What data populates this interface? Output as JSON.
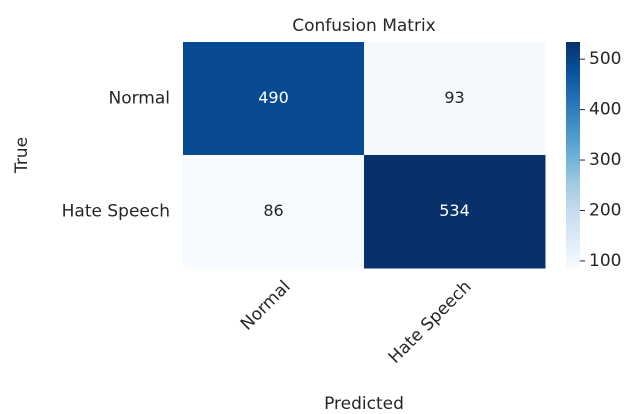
{
  "chart_data": {
    "type": "heatmap",
    "title": "Confusion Matrix",
    "xlabel": "Predicted",
    "ylabel": "True",
    "x_categories": [
      "Normal",
      "Hate Speech"
    ],
    "y_categories": [
      "Normal",
      "Hate Speech"
    ],
    "values": [
      [
        490,
        93
      ],
      [
        86,
        534
      ]
    ],
    "colormap": "Blues",
    "clim": [
      86,
      534
    ],
    "cticks": [
      100,
      200,
      300,
      400,
      500
    ]
  }
}
